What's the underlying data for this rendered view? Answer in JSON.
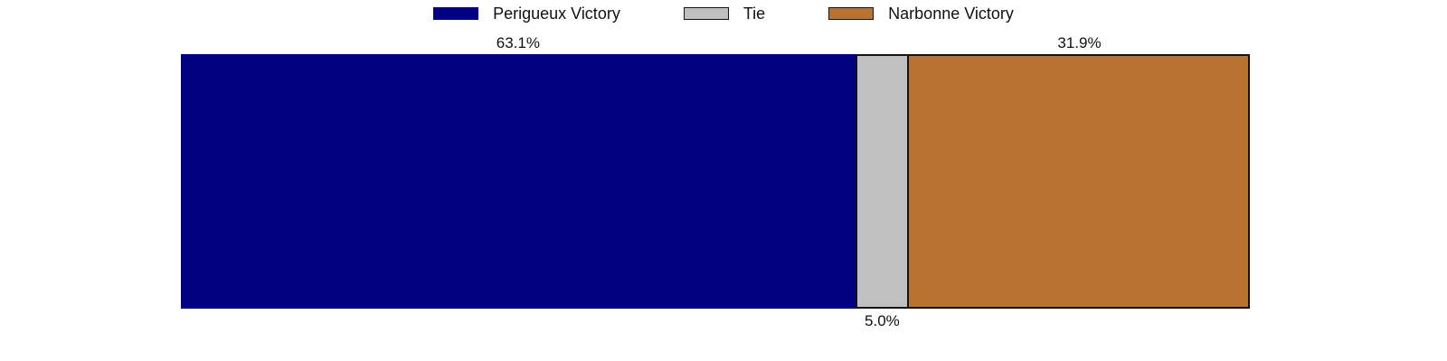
{
  "chart_data": {
    "type": "bar",
    "subtype": "horizontal-stacked-single-bar",
    "categories": [
      "Perigueux Victory",
      "Tie",
      "Narbonne Victory"
    ],
    "values": [
      63.1,
      5.0,
      31.9
    ],
    "labels": [
      "63.1%",
      "5.0%",
      "31.9%"
    ],
    "label_positions": [
      "above",
      "below",
      "above"
    ],
    "colors": [
      "#000080",
      "#c0c0c0",
      "#b87333"
    ],
    "edge_color": "#141414",
    "background_color": "#ffffff",
    "xlim": [
      0,
      100
    ],
    "grid": false,
    "legend_position": "top-center",
    "title": "",
    "xlabel": "",
    "ylabel": ""
  }
}
